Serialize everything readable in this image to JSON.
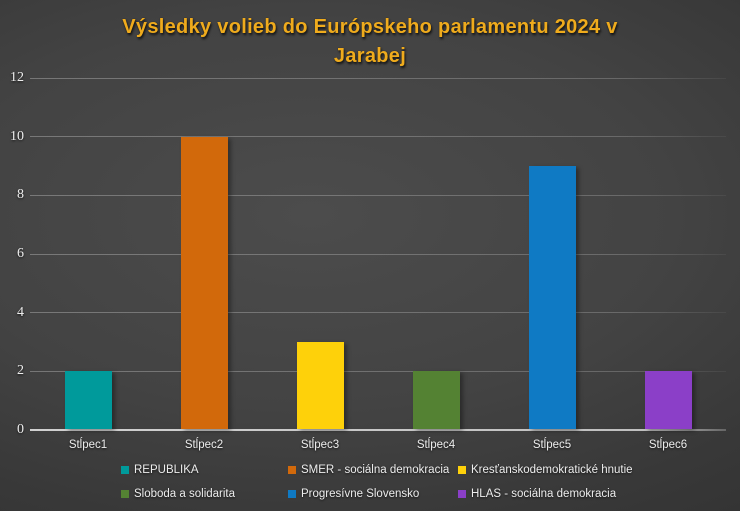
{
  "chart_data": {
    "type": "bar",
    "title": "Výsledky volieb do Európskeho parlamentu 2024 v Jarabej",
    "title_color": "#EFAB1D",
    "categories": [
      "Stĺpec1",
      "Stĺpec2",
      "Stĺpec3",
      "Stĺpec4",
      "Stĺpec5",
      "Stĺpec6"
    ],
    "values": [
      2,
      10,
      3,
      2,
      9,
      2
    ],
    "series": [
      {
        "name": "REPUBLIKA",
        "category": "Stĺpec1",
        "value": 2,
        "color": "#009A9B"
      },
      {
        "name": "SMER - sociálna demokracia",
        "category": "Stĺpec2",
        "value": 10,
        "color": "#D2690B"
      },
      {
        "name": "Kresťanskodemokratické hnutie",
        "category": "Stĺpec3",
        "value": 3,
        "color": "#FED10A"
      },
      {
        "name": "Sloboda a solidarita",
        "category": "Stĺpec4",
        "value": 2,
        "color": "#548233"
      },
      {
        "name": "Progresívne Slovensko",
        "category": "Stĺpec5",
        "value": 9,
        "color": "#0F7AC4"
      },
      {
        "name": "HLAS - sociálna demokracia",
        "category": "Stĺpec6",
        "value": 2,
        "color": "#8B3FC8"
      }
    ],
    "xlabel": "",
    "ylabel": "",
    "ylim": [
      0,
      12
    ],
    "yticks": [
      0,
      2,
      4,
      6,
      8,
      10,
      12
    ],
    "grid": true,
    "legend_position": "bottom",
    "legend_rows": [
      [
        0,
        1,
        2
      ],
      [
        3,
        4,
        5
      ]
    ]
  },
  "colors": {
    "background_center": "#4C4C4C",
    "background_edge": "#2B2B2B",
    "gridline": "#6E6E6E",
    "axis_line": "#EBEBEB",
    "tick_text": "#EDEDED",
    "label_text": "#EDEDED"
  }
}
